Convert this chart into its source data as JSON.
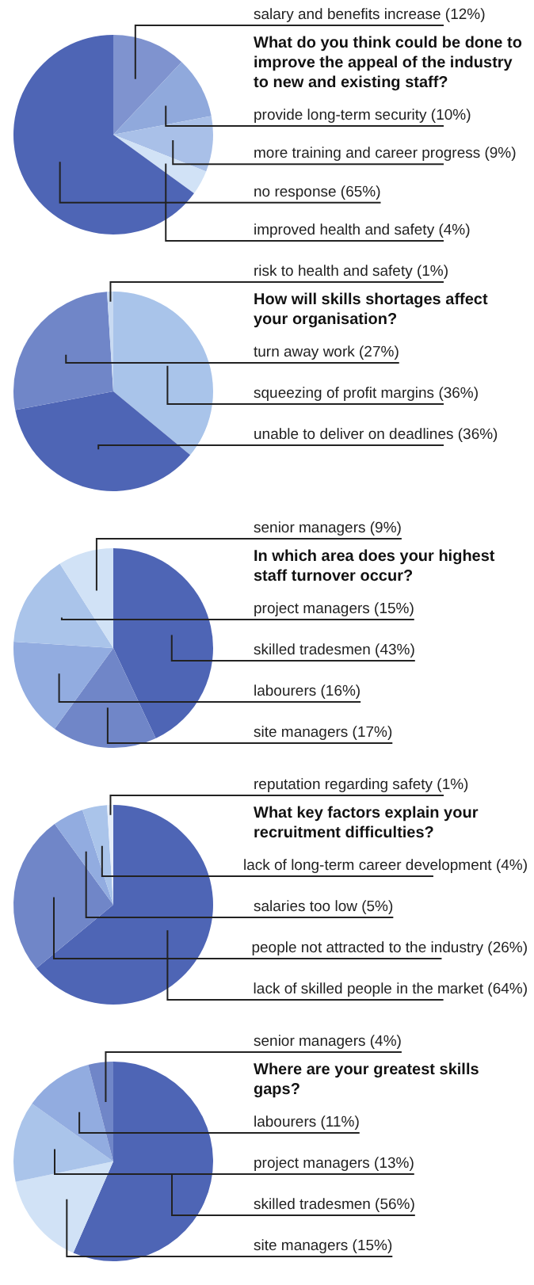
{
  "chart_data": [
    {
      "type": "pie",
      "title": "What do you think could be done to improve the appeal of the industry to new and existing staff?",
      "categories": [
        "salary and benefits increase",
        "provide long-term security",
        "more training and career progress",
        "improved health and safety",
        "no response"
      ],
      "values": [
        12,
        10,
        9,
        4,
        65
      ],
      "value_labels": [
        "(12%)",
        "(10%)",
        "(9%)",
        "(4%)",
        "(65%)"
      ],
      "colors": [
        "#7f93cf",
        "#90a9dc",
        "#a9c0e8",
        "#d1e2f6",
        "#4e65b5"
      ]
    },
    {
      "type": "pie",
      "title": "How will skills shortages affect your organisation?",
      "categories": [
        "squeezing of profit margins",
        "unable to deliver on deadlines",
        "turn away work",
        "risk to health and safety"
      ],
      "values": [
        36,
        36,
        27,
        1
      ],
      "value_labels": [
        "(36%)",
        "(36%)",
        "(27%)",
        "(1%)"
      ],
      "colors": [
        "#a9c4ea",
        "#4e65b5",
        "#7086c8",
        "#c8daf2"
      ]
    },
    {
      "type": "pie",
      "title": "In which area does your highest staff turnover occur?",
      "categories": [
        "skilled tradesmen",
        "site managers",
        "labourers",
        "project managers",
        "senior managers"
      ],
      "values": [
        43,
        17,
        16,
        15,
        9
      ],
      "value_labels": [
        "(43%)",
        "(17%)",
        "(16%)",
        "(15%)",
        "(9%)"
      ],
      "colors": [
        "#4e65b5",
        "#7086c8",
        "#92ace0",
        "#aac4ea",
        "#d1e2f6"
      ]
    },
    {
      "type": "pie",
      "title": "What key factors explain your recruitment difficulties?",
      "categories": [
        "lack of skilled people in the market",
        "people not attracted to the industry",
        "salaries too low",
        "lack of long-term career development",
        "reputation regarding safety"
      ],
      "values": [
        64,
        26,
        5,
        4,
        1
      ],
      "value_labels": [
        "(64%)",
        "(26%)",
        "(5%)",
        "(4%)",
        "(1%)"
      ],
      "colors": [
        "#4e65b5",
        "#7086c8",
        "#92ace0",
        "#aac4ea",
        "#e6eefa"
      ]
    },
    {
      "type": "pie",
      "title": "Where are your greatest skills gaps?",
      "categories": [
        "skilled tradesmen",
        "site managers",
        "project managers",
        "labourers",
        "senior managers"
      ],
      "values": [
        56,
        15,
        13,
        11,
        4
      ],
      "value_labels": [
        "(56%)",
        "(15%)",
        "(13%)",
        "(11%)",
        "(4%)"
      ],
      "colors": [
        "#4e65b5",
        "#d1e2f6",
        "#aac4ea",
        "#92ace0",
        "#7086c8"
      ]
    }
  ]
}
